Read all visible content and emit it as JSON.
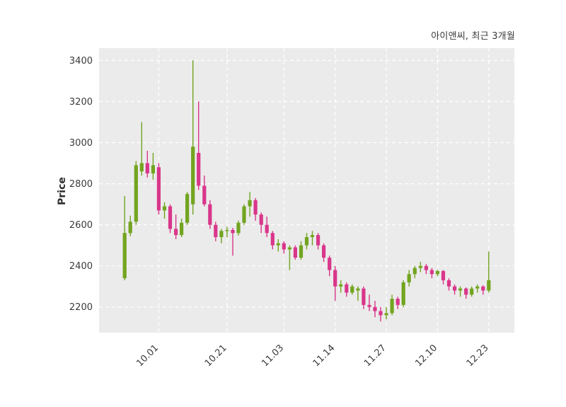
{
  "title": "아이앤씨, 최근 3개월",
  "ylabel": "Price",
  "colors": {
    "up": "#72a41f",
    "down": "#d9368a",
    "plot_bg": "#ebebeb",
    "grid": "#ffffff",
    "tick_text": "#3a3a3a"
  },
  "chart_data": {
    "type": "candlestick",
    "title": "아이앤씨, 최근 3개월",
    "ylabel": "Price",
    "xlabel": "",
    "legend": "none",
    "grid": "dashed white on gray panel",
    "ylim": [
      2075,
      3460
    ],
    "yticks": [
      2200,
      2400,
      2600,
      2800,
      3000,
      3200,
      3400
    ],
    "xtick_labels": [
      "10.01",
      "10.21",
      "11.03",
      "11.14",
      "11.27",
      "12.10",
      "12.23"
    ],
    "ohlc_format": [
      "date",
      "open",
      "high",
      "low",
      "close"
    ],
    "candles": [
      [
        "09.23",
        2340,
        2740,
        2330,
        2560
      ],
      [
        "09.24",
        2560,
        2645,
        2545,
        2615
      ],
      [
        "09.25",
        2615,
        2910,
        2600,
        2890
      ],
      [
        "09.26",
        2860,
        3100,
        2840,
        2900
      ],
      [
        "09.27",
        2900,
        2960,
        2830,
        2850
      ],
      [
        "09.30",
        2850,
        2950,
        2820,
        2890
      ],
      [
        "10.01",
        2880,
        2900,
        2650,
        2670
      ],
      [
        "10.02",
        2670,
        2710,
        2630,
        2690
      ],
      [
        "10.04",
        2690,
        2700,
        2560,
        2580
      ],
      [
        "10.07",
        2580,
        2650,
        2530,
        2550
      ],
      [
        "10.08",
        2550,
        2630,
        2540,
        2610
      ],
      [
        "10.10",
        2610,
        2760,
        2600,
        2750
      ],
      [
        "10.11",
        2700,
        3400,
        2650,
        2980
      ],
      [
        "10.14",
        2950,
        3200,
        2770,
        2790
      ],
      [
        "10.15",
        2790,
        2840,
        2690,
        2700
      ],
      [
        "10.16",
        2700,
        2720,
        2580,
        2600
      ],
      [
        "10.17",
        2600,
        2615,
        2520,
        2540
      ],
      [
        "10.18",
        2540,
        2580,
        2510,
        2570
      ],
      [
        "10.21",
        2570,
        2590,
        2540,
        2575
      ],
      [
        "10.22",
        2575,
        2585,
        2450,
        2560
      ],
      [
        "10.23",
        2560,
        2620,
        2548,
        2610
      ],
      [
        "10.24",
        2610,
        2700,
        2600,
        2690
      ],
      [
        "10.25",
        2690,
        2760,
        2640,
        2720
      ],
      [
        "10.28",
        2720,
        2730,
        2620,
        2650
      ],
      [
        "10.29",
        2650,
        2660,
        2560,
        2600
      ],
      [
        "10.30",
        2600,
        2640,
        2540,
        2560
      ],
      [
        "10.31",
        2560,
        2570,
        2480,
        2500
      ],
      [
        "11.01",
        2500,
        2530,
        2470,
        2510
      ],
      [
        "11.03",
        2510,
        2520,
        2460,
        2480
      ],
      [
        "11.04",
        2480,
        2500,
        2380,
        2490
      ],
      [
        "11.05",
        2490,
        2500,
        2430,
        2440
      ],
      [
        "11.06",
        2440,
        2520,
        2430,
        2500
      ],
      [
        "11.07",
        2500,
        2560,
        2480,
        2540
      ],
      [
        "11.10",
        2540,
        2570,
        2500,
        2550
      ],
      [
        "11.11",
        2550,
        2560,
        2480,
        2500
      ],
      [
        "11.12",
        2500,
        2510,
        2420,
        2440
      ],
      [
        "11.13",
        2440,
        2450,
        2350,
        2380
      ],
      [
        "11.14",
        2380,
        2400,
        2230,
        2300
      ],
      [
        "11.17",
        2300,
        2330,
        2270,
        2310
      ],
      [
        "11.18",
        2310,
        2320,
        2250,
        2270
      ],
      [
        "11.19",
        2270,
        2310,
        2260,
        2300
      ],
      [
        "11.20",
        2280,
        2300,
        2230,
        2290
      ],
      [
        "11.21",
        2290,
        2300,
        2190,
        2210
      ],
      [
        "11.24",
        2210,
        2260,
        2180,
        2200
      ],
      [
        "11.25",
        2200,
        2230,
        2150,
        2180
      ],
      [
        "11.26",
        2180,
        2200,
        2130,
        2160
      ],
      [
        "11.27",
        2160,
        2200,
        2140,
        2170
      ],
      [
        "11.28",
        2170,
        2260,
        2160,
        2240
      ],
      [
        "12.01",
        2240,
        2250,
        2190,
        2210
      ],
      [
        "12.02",
        2210,
        2330,
        2200,
        2320
      ],
      [
        "12.03",
        2320,
        2380,
        2300,
        2360
      ],
      [
        "12.04",
        2360,
        2400,
        2340,
        2390
      ],
      [
        "12.05",
        2390,
        2420,
        2370,
        2400
      ],
      [
        "12.08",
        2400,
        2410,
        2360,
        2380
      ],
      [
        "12.09",
        2380,
        2390,
        2340,
        2360
      ],
      [
        "12.10",
        2360,
        2380,
        2350,
        2375
      ],
      [
        "12.11",
        2375,
        2380,
        2310,
        2330
      ],
      [
        "12.12",
        2330,
        2340,
        2280,
        2300
      ],
      [
        "12.15",
        2300,
        2310,
        2260,
        2280
      ],
      [
        "12.16",
        2280,
        2300,
        2250,
        2290
      ],
      [
        "12.17",
        2290,
        2295,
        2240,
        2260
      ],
      [
        "12.18",
        2260,
        2300,
        2250,
        2290
      ],
      [
        "12.19",
        2290,
        2310,
        2270,
        2300
      ],
      [
        "12.22",
        2300,
        2305,
        2260,
        2280
      ],
      [
        "12.23",
        2280,
        2470,
        2270,
        2330
      ]
    ]
  }
}
